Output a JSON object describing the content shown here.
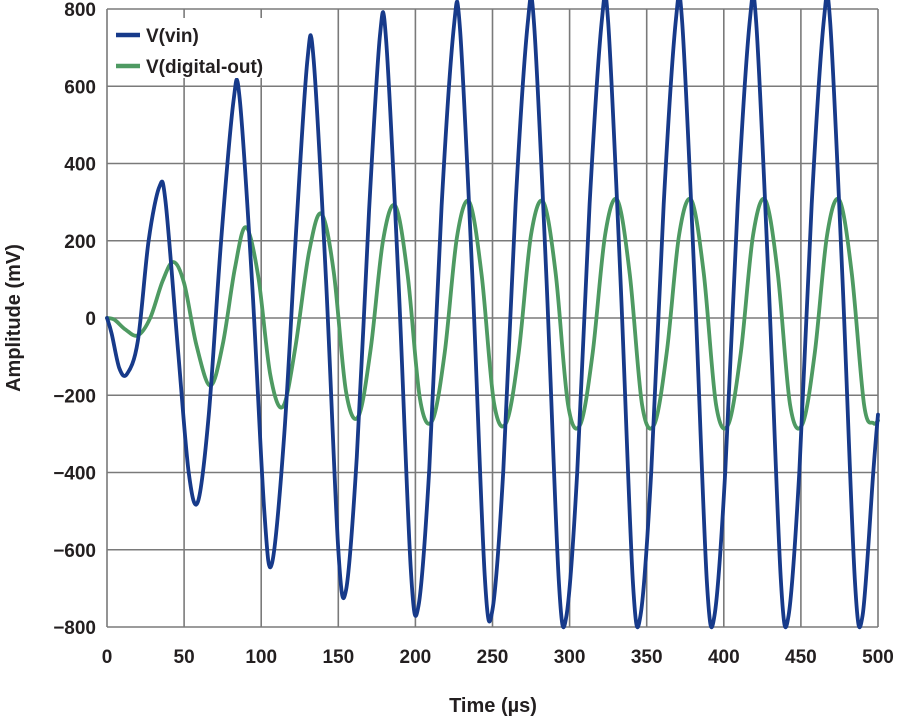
{
  "chart_data": {
    "type": "line",
    "title": "",
    "xlabel": "Time (µs)",
    "ylabel": "Amplitude (mV)",
    "xlim": [
      0,
      500
    ],
    "ylim": [
      -800,
      800
    ],
    "x_ticks": [
      0,
      50,
      100,
      150,
      200,
      250,
      300,
      350,
      400,
      450,
      500
    ],
    "y_ticks": [
      -800,
      -600,
      -400,
      -200,
      0,
      200,
      400,
      600,
      800
    ],
    "grid": true,
    "legend": {
      "position": "top-left"
    },
    "colors": {
      "V(vin)": "#173a8a",
      "V(digital-out)": "#4e9a62",
      "grid": "#7a7a7a"
    },
    "series": [
      {
        "name": "V(vin)",
        "x": [
          0,
          3,
          8,
          13,
          20,
          27,
          34,
          38,
          46,
          53,
          59,
          66,
          74,
          82,
          86,
          94,
          102,
          107,
          115,
          123,
          130,
          134,
          142,
          150,
          155,
          162,
          170,
          177,
          181,
          189,
          197,
          202,
          209,
          217,
          225,
          229,
          237,
          245,
          250,
          257,
          265,
          273,
          277,
          285,
          293,
          298,
          305,
          313,
          321,
          325,
          333,
          341,
          346,
          353,
          361,
          369,
          373,
          381,
          389,
          394,
          401,
          409,
          417,
          421,
          429,
          437,
          442,
          449,
          457,
          465,
          469,
          477,
          485,
          490,
          497,
          500
        ],
        "y": [
          0,
          -40,
          -130,
          -145,
          -60,
          200,
          340,
          300,
          -80,
          -400,
          -475,
          -250,
          200,
          560,
          570,
          100,
          -500,
          -635,
          -300,
          250,
          670,
          670,
          100,
          -600,
          -705,
          -360,
          280,
          730,
          720,
          100,
          -650,
          -745,
          -390,
          290,
          755,
          745,
          100,
          -670,
          -755,
          -395,
          295,
          770,
          760,
          100,
          -680,
          -770,
          -395,
          295,
          775,
          765,
          100,
          -680,
          -770,
          -395,
          295,
          775,
          765,
          100,
          -680,
          -770,
          -395,
          295,
          775,
          765,
          100,
          -680,
          -770,
          -395,
          295,
          775,
          765,
          100,
          -680,
          -770,
          -395,
          -250
        ]
      },
      {
        "name": "V(digital-out)",
        "x": [
          0,
          5,
          12,
          20,
          28,
          36,
          43,
          50,
          58,
          67,
          75,
          83,
          90,
          98,
          106,
          114,
          122,
          131,
          139,
          147,
          155,
          163,
          171,
          179,
          187,
          195,
          203,
          211,
          219,
          227,
          235,
          243,
          251,
          259,
          267,
          275,
          283,
          291,
          299,
          307,
          315,
          323,
          331,
          339,
          347,
          355,
          363,
          371,
          379,
          387,
          395,
          403,
          411,
          419,
          427,
          435,
          443,
          451,
          459,
          467,
          475,
          483,
          491,
          497,
          500
        ],
        "y": [
          0,
          -5,
          -30,
          -45,
          0,
          95,
          145,
          90,
          -70,
          -175,
          -70,
          130,
          235,
          110,
          -150,
          -230,
          -80,
          170,
          270,
          120,
          -190,
          -255,
          -80,
          200,
          290,
          110,
          -210,
          -265,
          -90,
          210,
          300,
          110,
          -220,
          -270,
          -90,
          215,
          300,
          115,
          -225,
          -275,
          -90,
          215,
          305,
          115,
          -225,
          -275,
          -90,
          215,
          305,
          115,
          -225,
          -275,
          -90,
          215,
          305,
          115,
          -225,
          -275,
          -90,
          215,
          305,
          115,
          -225,
          -272,
          -265
        ]
      }
    ]
  }
}
